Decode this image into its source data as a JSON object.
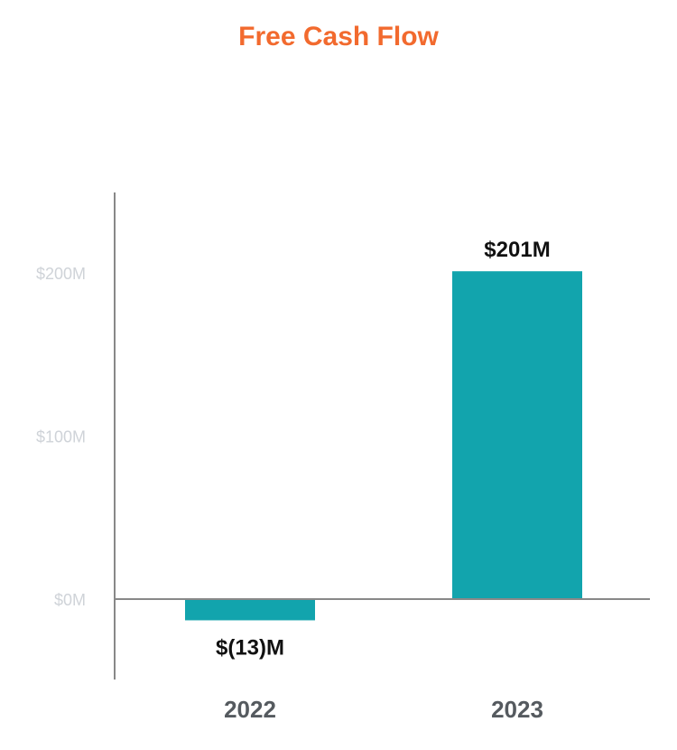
{
  "colors": {
    "title": "#f26a2e",
    "bar": "#12a4ad",
    "axis": "#888888",
    "tick_label": "#cfd3d8",
    "category_label": "#555a5f",
    "data_label": "#111111"
  },
  "chart_data": {
    "type": "bar",
    "title": "Free Cash Flow",
    "xlabel": "",
    "ylabel": "",
    "categories": [
      "2022",
      "2023"
    ],
    "values": [
      -13,
      201
    ],
    "data_labels": [
      "$(13)M",
      "$201M"
    ],
    "y_ticks": [
      0,
      100,
      200
    ],
    "y_tick_labels": [
      "$0M",
      "$100M",
      "$200M"
    ],
    "ylim": [
      -50,
      250
    ],
    "grid": false,
    "legend": "none"
  }
}
